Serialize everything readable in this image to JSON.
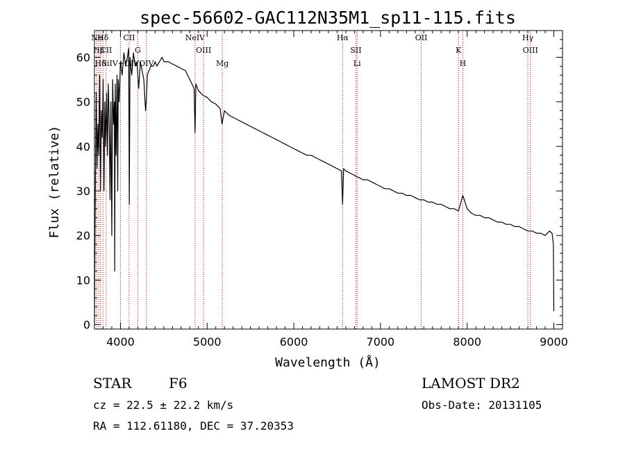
{
  "chart_data": {
    "type": "line",
    "title": "spec-56602-GAC112N35M1_sp11-115.fits",
    "xlabel": "Wavelength (Å)",
    "ylabel": "Flux (relative)",
    "xlim": [
      3700,
      9100
    ],
    "ylim": [
      -1,
      66
    ],
    "x_ticks": [
      4000,
      5000,
      6000,
      7000,
      8000,
      9000
    ],
    "y_ticks": [
      0,
      10,
      20,
      30,
      40,
      50,
      60
    ],
    "grid": false,
    "series": [
      {
        "x": [
          3700,
          3710,
          3720,
          3730,
          3740,
          3750,
          3760,
          3770,
          3780,
          3790,
          3800,
          3810,
          3820,
          3830,
          3840,
          3850,
          3860,
          3870,
          3880,
          3890,
          3900,
          3910,
          3920,
          3930,
          3934,
          3940,
          3950,
          3960,
          3968,
          3975,
          3985,
          4000,
          4020,
          4040,
          4060,
          4080,
          4095,
          4102,
          4110,
          4130,
          4150,
          4170,
          4190,
          4210,
          4230,
          4250,
          4270,
          4290,
          4300,
          4310,
          4330,
          4350,
          4380,
          4400,
          4420,
          4450,
          4480,
          4500,
          4550,
          4600,
          4650,
          4700,
          4750,
          4800,
          4850,
          4861,
          4870,
          4900,
          4950,
          5000,
          5050,
          5100,
          5150,
          5172,
          5200,
          5250,
          5300,
          5350,
          5400,
          5450,
          5500,
          5550,
          5600,
          5650,
          5700,
          5750,
          5800,
          5850,
          5900,
          5950,
          6000,
          6050,
          6100,
          6150,
          6200,
          6250,
          6300,
          6350,
          6400,
          6450,
          6500,
          6550,
          6563,
          6575,
          6600,
          6650,
          6700,
          6750,
          6800,
          6850,
          6900,
          6950,
          7000,
          7050,
          7100,
          7150,
          7200,
          7250,
          7300,
          7350,
          7400,
          7450,
          7500,
          7550,
          7600,
          7650,
          7700,
          7750,
          7800,
          7850,
          7900,
          7950,
          8000,
          8050,
          8100,
          8150,
          8200,
          8250,
          8300,
          8350,
          8400,
          8450,
          8500,
          8550,
          8600,
          8650,
          8700,
          8750,
          8800,
          8850,
          8900,
          8950,
          8980,
          8995,
          9000
        ],
        "y": [
          0,
          30,
          52,
          35,
          45,
          38,
          56,
          30,
          48,
          42,
          55,
          30,
          50,
          40,
          52,
          38,
          54,
          46,
          28,
          50,
          20,
          55,
          45,
          50,
          12,
          54,
          38,
          56,
          30,
          55,
          50,
          59,
          56,
          61,
          58,
          60,
          62,
          27,
          60,
          56,
          61,
          58,
          59,
          53,
          59,
          57,
          55,
          48,
          51,
          56,
          57,
          58,
          58,
          59,
          58,
          59,
          60,
          59,
          59,
          58.5,
          58,
          57.5,
          57,
          55,
          53,
          43,
          54,
          52.5,
          51.5,
          51,
          50,
          49.5,
          48.5,
          45,
          48,
          47,
          46.5,
          46,
          45.5,
          45,
          44.5,
          44,
          43.5,
          43,
          42.5,
          42,
          41.5,
          41,
          40.5,
          40,
          39.5,
          39,
          38.5,
          38,
          38,
          37.5,
          37,
          36.5,
          36,
          35.5,
          35,
          34.5,
          27,
          35,
          34.5,
          34,
          33.5,
          33,
          32.5,
          32.5,
          32,
          31.5,
          31,
          30.5,
          30.5,
          30,
          29.5,
          29.5,
          29,
          29,
          28.5,
          28,
          28,
          27.5,
          27.5,
          27,
          27,
          26.5,
          26,
          26,
          25.5,
          29,
          26,
          25,
          24.5,
          24.5,
          24,
          24,
          23.5,
          23,
          23,
          22.5,
          22.5,
          22,
          22,
          21.5,
          21,
          21,
          20.5,
          20.5,
          20,
          21,
          20.5,
          18,
          3
        ]
      }
    ],
    "line_markers": [
      {
        "label": "Ne",
        "x": 3727
      },
      {
        "label": "Hβ",
        "x": 3750
      },
      {
        "label": "Hδ",
        "x": 3770
      },
      {
        "label": "Hδ",
        "x": 3798
      },
      {
        "label": "CII",
        "x": 3835
      },
      {
        "label": "SiIV+OIV",
        "x": 4000
      },
      {
        "label": "CII",
        "x": 4100
      },
      {
        "label": "G",
        "x": 4200
      },
      {
        "label": "OIV",
        "x": 4300
      },
      {
        "label": "NeIV",
        "x": 4861
      },
      {
        "label": "OIII",
        "x": 4959
      },
      {
        "label": "Mg",
        "x": 5175
      },
      {
        "label": "Hα",
        "x": 6563
      },
      {
        "label": "SII",
        "x": 6716
      },
      {
        "label": "Li",
        "x": 6730
      },
      {
        "label": "OII",
        "x": 7470
      },
      {
        "label": "K",
        "x": 7900
      },
      {
        "label": "H",
        "x": 7950
      },
      {
        "label": "Hγ",
        "x": 8700
      },
      {
        "label": "OIII",
        "x": 8730
      }
    ]
  },
  "info": {
    "class": "STAR",
    "subclass": "F6",
    "cz": "cz = 22.5 ± 22.2 km/s",
    "coords": "RA = 112.61180, DEC =  37.20353",
    "survey": "LAMOST DR2",
    "obs_date": "Obs-Date: 20131105"
  }
}
